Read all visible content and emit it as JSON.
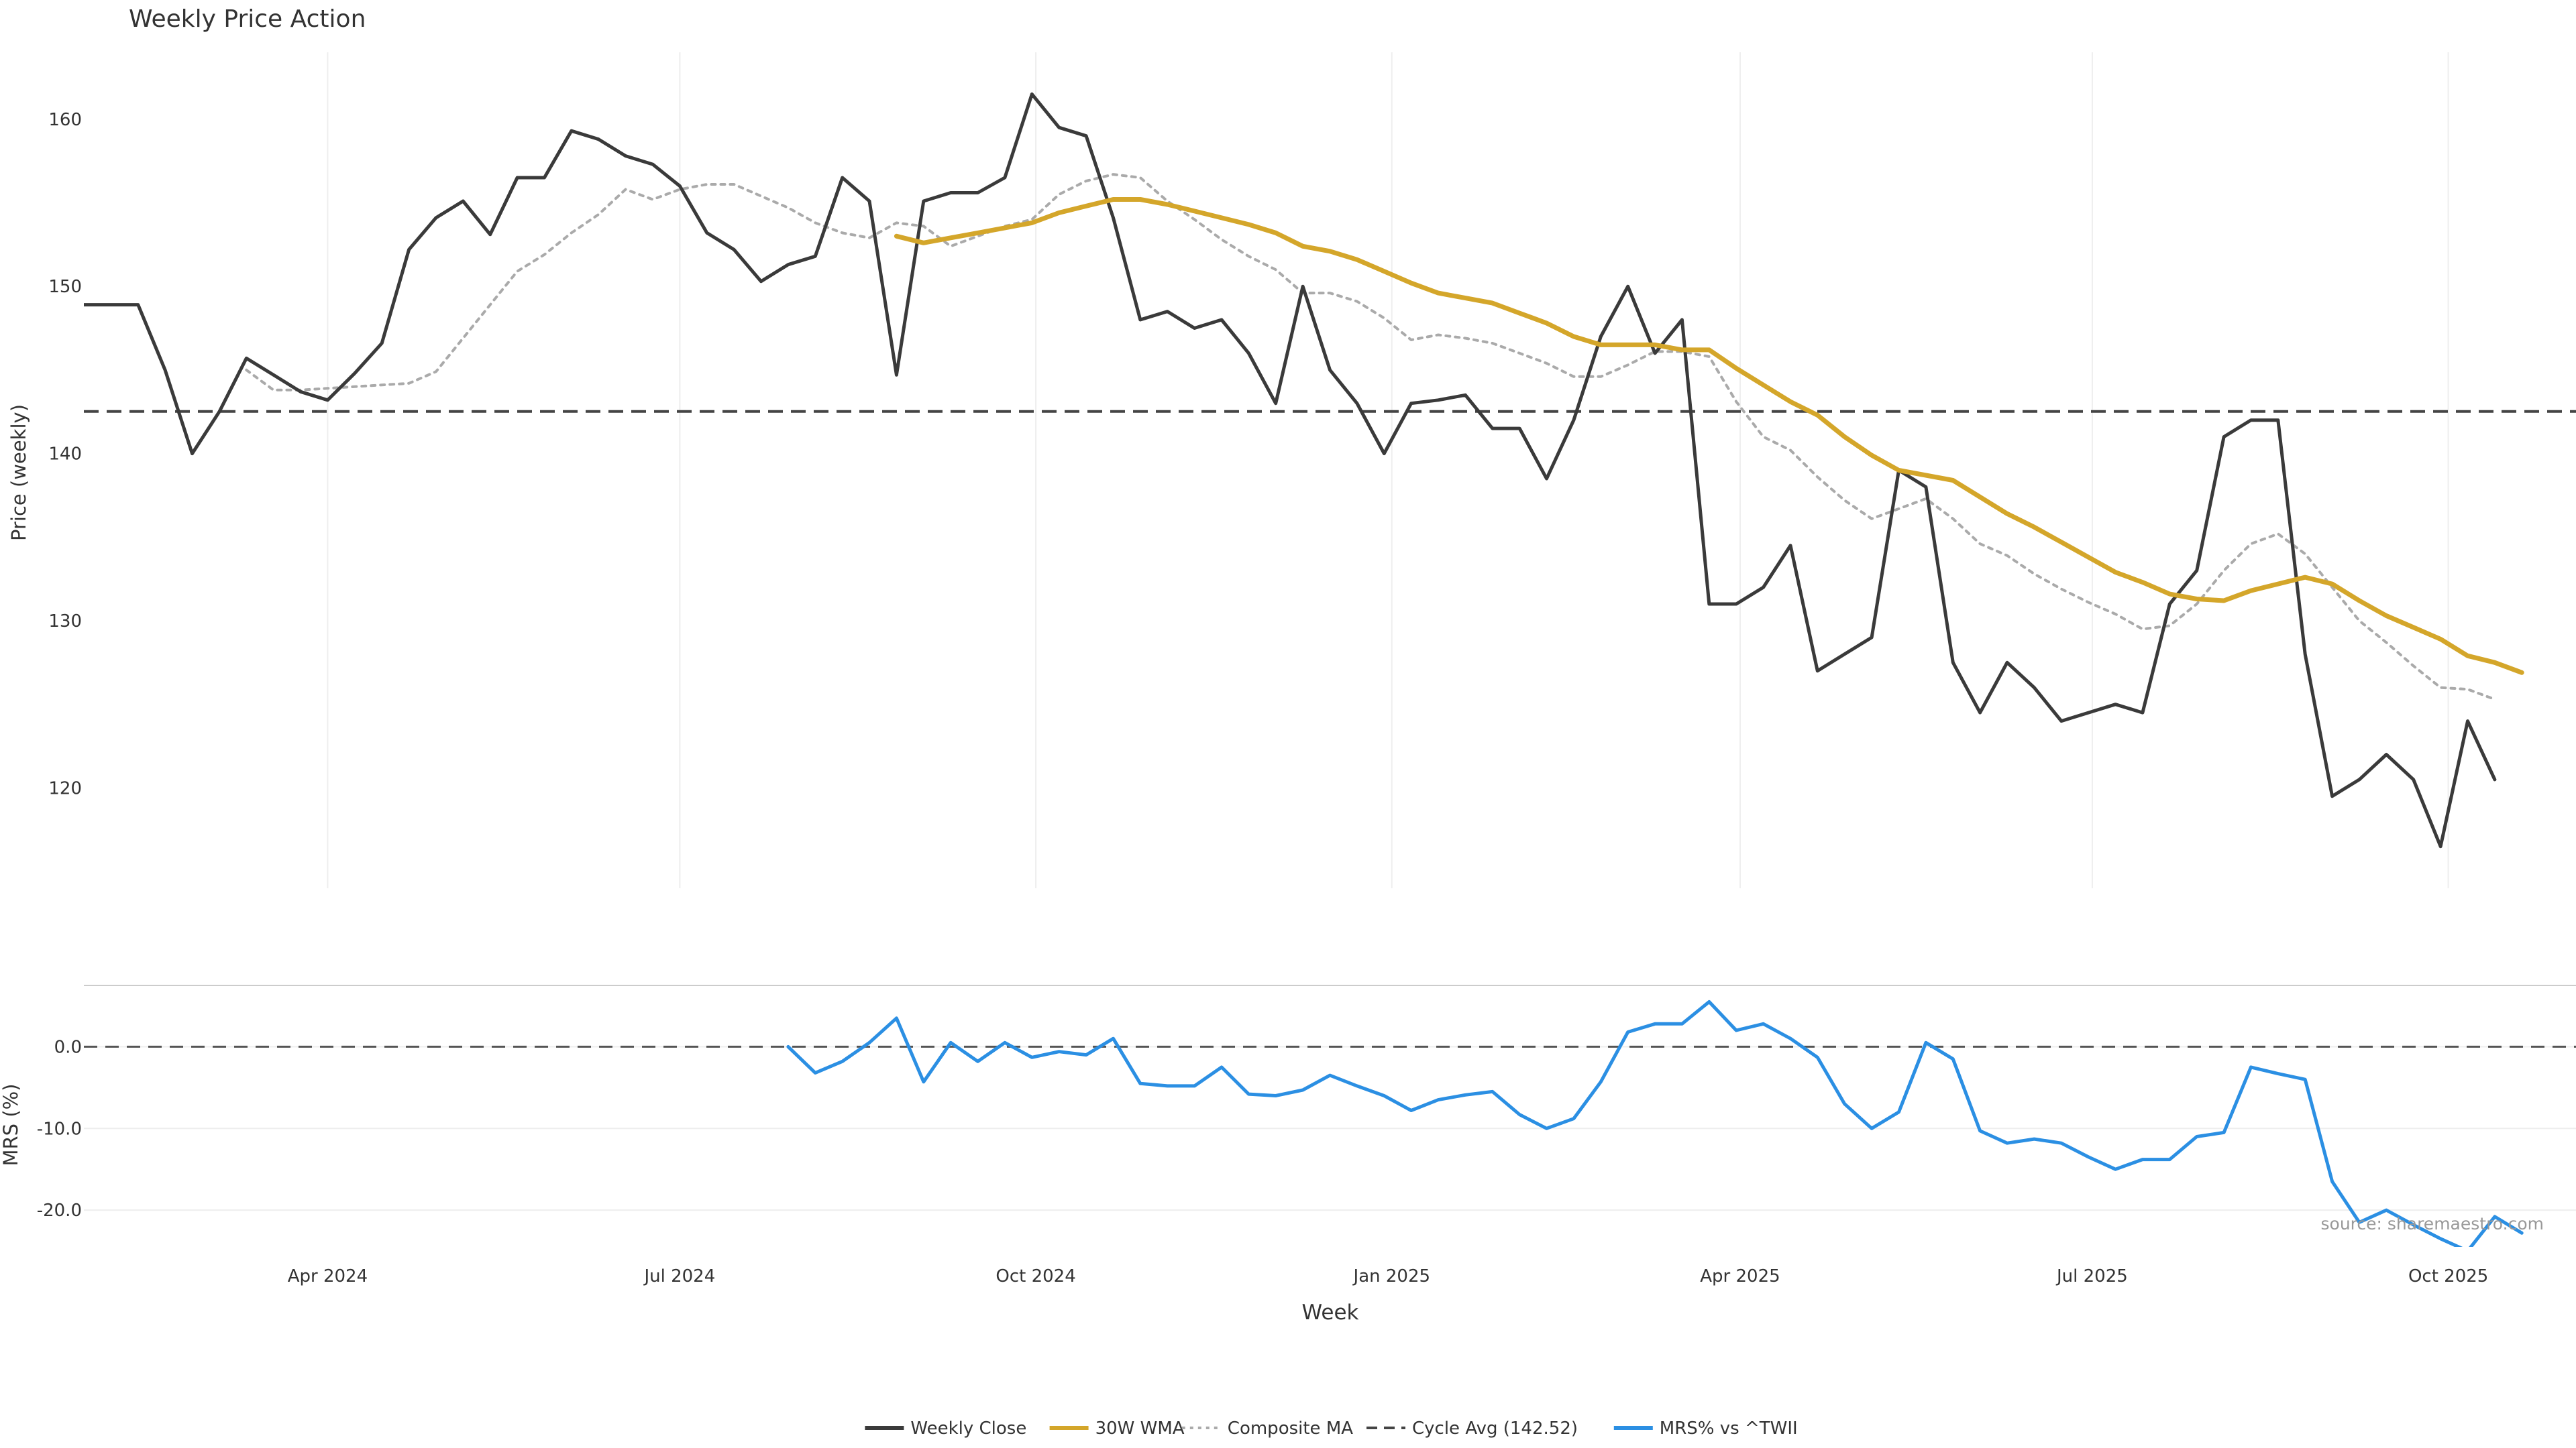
{
  "chart_data": {
    "type": "line",
    "title": "Weekly Price Action",
    "xlabel": "Week",
    "x_tick_labels": [
      "Apr 2024",
      "Jul 2024",
      "Oct 2024",
      "Jan 2025",
      "Apr 2025",
      "Jul 2025",
      "Oct 2025"
    ],
    "x_tick_dates": [
      "2024-04-01",
      "2024-07-01",
      "2024-10-01",
      "2025-01-01",
      "2025-04-01",
      "2025-07-01",
      "2025-10-01"
    ],
    "x_range": [
      "2024-01-29",
      "2025-11-03"
    ],
    "legend_position": "bottom-center",
    "source": "source: sharemaestro.com",
    "colors": {
      "weekly_close": "#3a3a3a",
      "wma": "#d4a62a",
      "composite": "#aaaaaa",
      "cycle": "#444444",
      "mrs": "#2b8fe3",
      "grid": "#eeeeee"
    },
    "price_panel": {
      "ylabel": "Price (weekly)",
      "ylim": [
        114,
        164
      ],
      "yticks": [
        120,
        130,
        140,
        150,
        160
      ],
      "ytick_labels": [
        "120",
        "130",
        "140",
        "150",
        "160"
      ],
      "cycle_avg": 142.52,
      "series": [
        {
          "name": "Weekly Close",
          "start": "2024-01-29",
          "step_days": 7,
          "values": [
            148.9,
            148.9,
            148.9,
            145.0,
            140.0,
            142.5,
            145.7,
            144.7,
            143.7,
            143.2,
            144.8,
            146.6,
            152.2,
            154.1,
            155.1,
            153.1,
            156.5,
            156.5,
            159.3,
            158.8,
            157.8,
            157.3,
            156.0,
            153.2,
            152.2,
            150.3,
            151.3,
            151.8,
            156.5,
            155.1,
            144.7,
            155.1,
            155.6,
            155.6,
            156.5,
            161.5,
            159.5,
            159.0,
            154.1,
            148.0,
            148.5,
            147.5,
            148.0,
            146.0,
            143.0,
            150.0,
            145.0,
            143.0,
            140.0,
            143.0,
            143.2,
            143.5,
            141.5,
            141.5,
            138.5,
            142.0,
            147.0,
            150.0,
            146.0,
            148.0,
            131.0,
            131.0,
            132.0,
            134.5,
            127.0,
            128.0,
            129.0,
            139.0,
            138.0,
            127.5,
            124.5,
            127.5,
            126.0,
            124.0,
            124.5,
            125.0,
            124.5,
            131.0,
            133.0,
            141.0,
            142.0,
            142.0,
            128.0,
            119.5,
            120.5,
            122.0,
            120.5,
            116.5,
            124.0,
            120.5
          ]
        },
        {
          "name": "30W WMA",
          "start": "2024-08-26",
          "step_days": 7,
          "values": [
            153.0,
            152.6,
            152.9,
            153.2,
            153.5,
            153.8,
            154.4,
            154.8,
            155.2,
            155.2,
            154.9,
            154.5,
            154.1,
            153.7,
            153.2,
            152.4,
            152.1,
            151.6,
            150.9,
            150.2,
            149.6,
            149.3,
            149.0,
            148.4,
            147.8,
            147.0,
            146.5,
            146.5,
            146.5,
            146.2,
            146.2,
            145.1,
            144.1,
            143.1,
            142.3,
            141.0,
            139.9,
            139.0,
            138.7,
            138.4,
            137.4,
            136.4,
            135.6,
            134.7,
            133.8,
            132.9,
            132.3,
            131.6,
            131.3,
            131.2,
            131.8,
            132.2,
            132.6,
            132.2,
            131.2,
            130.3,
            129.6,
            128.9,
            127.9,
            127.5,
            126.9
          ]
        },
        {
          "name": "Composite MA",
          "start": "2024-03-11",
          "step_days": 7,
          "values": [
            145.0,
            143.8,
            143.8,
            143.9,
            144.0,
            144.1,
            144.2,
            144.9,
            146.9,
            148.9,
            150.9,
            151.9,
            153.2,
            154.3,
            155.8,
            155.2,
            155.8,
            156.1,
            156.1,
            155.4,
            154.7,
            153.8,
            153.2,
            152.9,
            153.8,
            153.6,
            152.4,
            153.0,
            153.6,
            154.0,
            155.5,
            156.3,
            156.7,
            156.5,
            155.1,
            154.0,
            152.8,
            151.8,
            151.0,
            149.6,
            149.6,
            149.1,
            148.1,
            146.8,
            147.1,
            146.9,
            146.6,
            146.0,
            145.4,
            144.6,
            144.6,
            145.3,
            146.1,
            146.1,
            145.8,
            143.1,
            141.0,
            140.2,
            138.6,
            137.2,
            136.1,
            136.7,
            137.3,
            136.1,
            134.6,
            133.9,
            132.8,
            131.9,
            131.1,
            130.4,
            129.5,
            129.7,
            131.0,
            133.0,
            134.6,
            135.2,
            134.0,
            132.0,
            130.0,
            128.7,
            127.3,
            126.0,
            125.9,
            125.3
          ]
        }
      ]
    },
    "mrs_panel": {
      "ylabel": "MRS (%)",
      "ylim": [
        -24.5,
        7.5
      ],
      "yticks": [
        0,
        -10,
        -20
      ],
      "ytick_labels": [
        "0.0",
        "-10.0",
        "-20.0"
      ],
      "zero_line": 0,
      "series": [
        {
          "name": "MRS% vs ^TWII",
          "start": "2024-07-29",
          "step_days": 7,
          "values": [
            0,
            -3.2,
            -1.8,
            0.5,
            3.5,
            -4.3,
            0.5,
            -1.8,
            0.5,
            -1.3,
            -0.6,
            -1.0,
            1.0,
            -4.5,
            -4.8,
            -4.8,
            -2.5,
            -5.8,
            -6.0,
            -5.3,
            -3.5,
            -4.8,
            -6.0,
            -7.8,
            -6.5,
            -5.9,
            -5.5,
            -8.3,
            -10.0,
            -8.8,
            -4.3,
            1.8,
            2.8,
            2.8,
            5.5,
            2.0,
            2.8,
            1.0,
            -1.3,
            -7.0,
            -10.0,
            -8.0,
            0.5,
            -1.5,
            -10.3,
            -11.8,
            -11.3,
            -11.8,
            -13.5,
            -15.0,
            -13.8,
            -13.8,
            -11.0,
            -10.5,
            -2.5,
            -3.3,
            -4.0,
            -16.5,
            -21.5,
            -20.0,
            -21.8,
            -23.5,
            -25.0,
            -20.8,
            -22.8
          ]
        }
      ]
    },
    "legend": [
      {
        "label": "Weekly Close",
        "style": "solid",
        "color": "#3a3a3a"
      },
      {
        "label": "30W WMA",
        "style": "solid",
        "color": "#d4a62a"
      },
      {
        "label": "Composite MA",
        "style": "dotted",
        "color": "#aaaaaa"
      },
      {
        "label": "Cycle Avg (142.52)",
        "style": "dashed",
        "color": "#444444"
      },
      {
        "label": "MRS% vs ^TWII",
        "style": "solid",
        "color": "#2b8fe3"
      }
    ]
  }
}
